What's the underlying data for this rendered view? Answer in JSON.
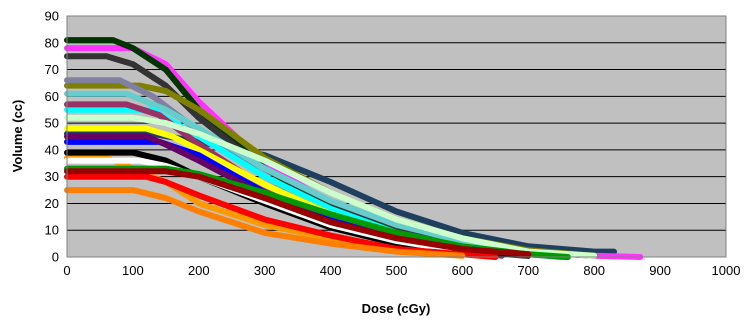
{
  "chart_data": {
    "type": "line",
    "title": "",
    "xlabel": "Dose (cGy)",
    "ylabel": "Volume (cc)",
    "xlim": [
      0,
      1000
    ],
    "ylim": [
      0,
      90
    ],
    "x_ticks": [
      0,
      100,
      200,
      300,
      400,
      500,
      600,
      700,
      800,
      900,
      1000
    ],
    "y_ticks": [
      0,
      10,
      20,
      30,
      40,
      50,
      60,
      70,
      80,
      90
    ],
    "grid": "horizontal",
    "plot_background": "#c0c0c0",
    "legend": "none",
    "series": [
      {
        "color": "#1f3f5f",
        "points": [
          [
            0,
            46
          ],
          [
            130,
            46
          ],
          [
            200,
            43
          ],
          [
            300,
            38
          ],
          [
            400,
            28
          ],
          [
            500,
            17
          ],
          [
            600,
            9
          ],
          [
            700,
            4
          ],
          [
            800,
            2
          ],
          [
            830,
            2
          ]
        ]
      },
      {
        "color": "#ff33ff",
        "points": [
          [
            0,
            78
          ],
          [
            100,
            78
          ],
          [
            150,
            72
          ],
          [
            200,
            58
          ],
          [
            300,
            35
          ],
          [
            400,
            20
          ],
          [
            500,
            11
          ],
          [
            600,
            5
          ],
          [
            700,
            2
          ],
          [
            800,
            0.5
          ],
          [
            870,
            0
          ]
        ]
      },
      {
        "color": "#003300",
        "points": [
          [
            0,
            81
          ],
          [
            70,
            81
          ],
          [
            100,
            78
          ],
          [
            150,
            70
          ],
          [
            200,
            55
          ],
          [
            300,
            33
          ],
          [
            400,
            20
          ],
          [
            500,
            11
          ],
          [
            600,
            5
          ],
          [
            700,
            2
          ],
          [
            800,
            0.5
          ]
        ]
      },
      {
        "color": "#333333",
        "points": [
          [
            0,
            75
          ],
          [
            60,
            75
          ],
          [
            100,
            72
          ],
          [
            150,
            64
          ],
          [
            200,
            52
          ],
          [
            300,
            33
          ],
          [
            400,
            19
          ],
          [
            500,
            10
          ],
          [
            600,
            4
          ],
          [
            700,
            1
          ],
          [
            760,
            0
          ]
        ]
      },
      {
        "color": "#808000",
        "points": [
          [
            0,
            64
          ],
          [
            110,
            64
          ],
          [
            150,
            62
          ],
          [
            200,
            55
          ],
          [
            300,
            37
          ],
          [
            400,
            24
          ],
          [
            500,
            14
          ],
          [
            600,
            7
          ],
          [
            700,
            2.5
          ],
          [
            800,
            0.5
          ]
        ]
      },
      {
        "color": "#8080a0",
        "points": [
          [
            0,
            66
          ],
          [
            80,
            66
          ],
          [
            130,
            60
          ],
          [
            200,
            47
          ],
          [
            300,
            30
          ],
          [
            400,
            17
          ],
          [
            500,
            9
          ],
          [
            600,
            4
          ],
          [
            700,
            1
          ],
          [
            750,
            0
          ]
        ]
      },
      {
        "color": "#66cccc",
        "points": [
          [
            0,
            61
          ],
          [
            90,
            61
          ],
          [
            150,
            55
          ],
          [
            200,
            48
          ],
          [
            300,
            33
          ],
          [
            400,
            21
          ],
          [
            500,
            12
          ],
          [
            600,
            6
          ],
          [
            700,
            2
          ],
          [
            760,
            0.5
          ]
        ]
      },
      {
        "color": "#00ffff",
        "points": [
          [
            0,
            55
          ],
          [
            130,
            55
          ],
          [
            150,
            52
          ],
          [
            200,
            45
          ],
          [
            300,
            30
          ],
          [
            400,
            18
          ],
          [
            500,
            9
          ],
          [
            600,
            4
          ],
          [
            700,
            1
          ]
        ]
      },
      {
        "color": "#993366",
        "points": [
          [
            0,
            57
          ],
          [
            90,
            57
          ],
          [
            140,
            53
          ],
          [
            200,
            42
          ],
          [
            300,
            26
          ],
          [
            400,
            15
          ],
          [
            500,
            7
          ],
          [
            600,
            3
          ],
          [
            700,
            0.5
          ]
        ]
      },
      {
        "color": "#ccffcc",
        "points": [
          [
            0,
            52
          ],
          [
            100,
            52
          ],
          [
            150,
            50
          ],
          [
            200,
            46
          ],
          [
            300,
            36
          ],
          [
            400,
            24
          ],
          [
            500,
            14
          ],
          [
            600,
            7
          ],
          [
            700,
            2
          ],
          [
            800,
            0.5
          ]
        ]
      },
      {
        "color": "#ffff00",
        "points": [
          [
            0,
            48
          ],
          [
            120,
            48
          ],
          [
            160,
            45
          ],
          [
            200,
            40
          ],
          [
            300,
            27
          ],
          [
            400,
            16
          ],
          [
            500,
            8
          ],
          [
            600,
            3
          ],
          [
            700,
            1
          ]
        ]
      },
      {
        "color": "#ff9900",
        "points": [
          [
            0,
            37
          ],
          [
            60,
            37
          ],
          [
            100,
            33
          ],
          [
            150,
            28
          ],
          [
            200,
            20
          ],
          [
            300,
            12
          ],
          [
            400,
            7
          ],
          [
            500,
            3
          ],
          [
            600,
            1
          ],
          [
            650,
            0
          ]
        ]
      },
      {
        "color": "#0000ff",
        "points": [
          [
            0,
            43
          ],
          [
            140,
            43
          ],
          [
            200,
            38
          ],
          [
            300,
            24
          ],
          [
            400,
            14
          ],
          [
            500,
            7
          ],
          [
            600,
            3
          ],
          [
            700,
            1
          ]
        ]
      },
      {
        "color": "#660066",
        "points": [
          [
            0,
            45
          ],
          [
            120,
            45
          ],
          [
            150,
            42
          ],
          [
            200,
            36
          ],
          [
            300,
            23
          ],
          [
            400,
            13
          ],
          [
            500,
            6
          ],
          [
            600,
            2
          ],
          [
            660,
            0.5
          ]
        ]
      },
      {
        "color": "#000000",
        "points": [
          [
            0,
            39
          ],
          [
            100,
            39
          ],
          [
            150,
            36
          ],
          [
            200,
            30
          ],
          [
            300,
            20
          ],
          [
            400,
            11
          ],
          [
            500,
            5
          ],
          [
            600,
            2
          ],
          [
            700,
            0.5
          ]
        ]
      },
      {
        "color": "#ffffff",
        "points": [
          [
            0,
            36
          ],
          [
            110,
            36
          ],
          [
            150,
            34
          ],
          [
            200,
            30
          ],
          [
            300,
            21
          ],
          [
            400,
            12
          ],
          [
            500,
            6
          ],
          [
            600,
            2
          ]
        ]
      },
      {
        "color": "#009900",
        "points": [
          [
            0,
            33
          ],
          [
            150,
            33
          ],
          [
            200,
            31
          ],
          [
            300,
            24
          ],
          [
            400,
            16
          ],
          [
            500,
            9
          ],
          [
            600,
            4
          ],
          [
            700,
            1
          ],
          [
            760,
            0
          ]
        ]
      },
      {
        "color": "#ff0000",
        "points": [
          [
            0,
            30
          ],
          [
            120,
            30
          ],
          [
            150,
            28
          ],
          [
            200,
            23
          ],
          [
            300,
            14
          ],
          [
            400,
            8
          ],
          [
            500,
            3
          ],
          [
            600,
            1
          ],
          [
            650,
            0
          ]
        ]
      },
      {
        "color": "#990000",
        "points": [
          [
            0,
            32
          ],
          [
            150,
            32
          ],
          [
            200,
            30
          ],
          [
            300,
            22
          ],
          [
            400,
            13
          ],
          [
            500,
            7
          ],
          [
            600,
            3
          ],
          [
            700,
            1
          ]
        ]
      },
      {
        "color": "#ff8000",
        "points": [
          [
            0,
            25
          ],
          [
            100,
            25
          ],
          [
            150,
            22
          ],
          [
            200,
            17
          ],
          [
            300,
            9
          ],
          [
            400,
            5
          ],
          [
            500,
            2
          ],
          [
            600,
            0.5
          ]
        ]
      }
    ]
  }
}
